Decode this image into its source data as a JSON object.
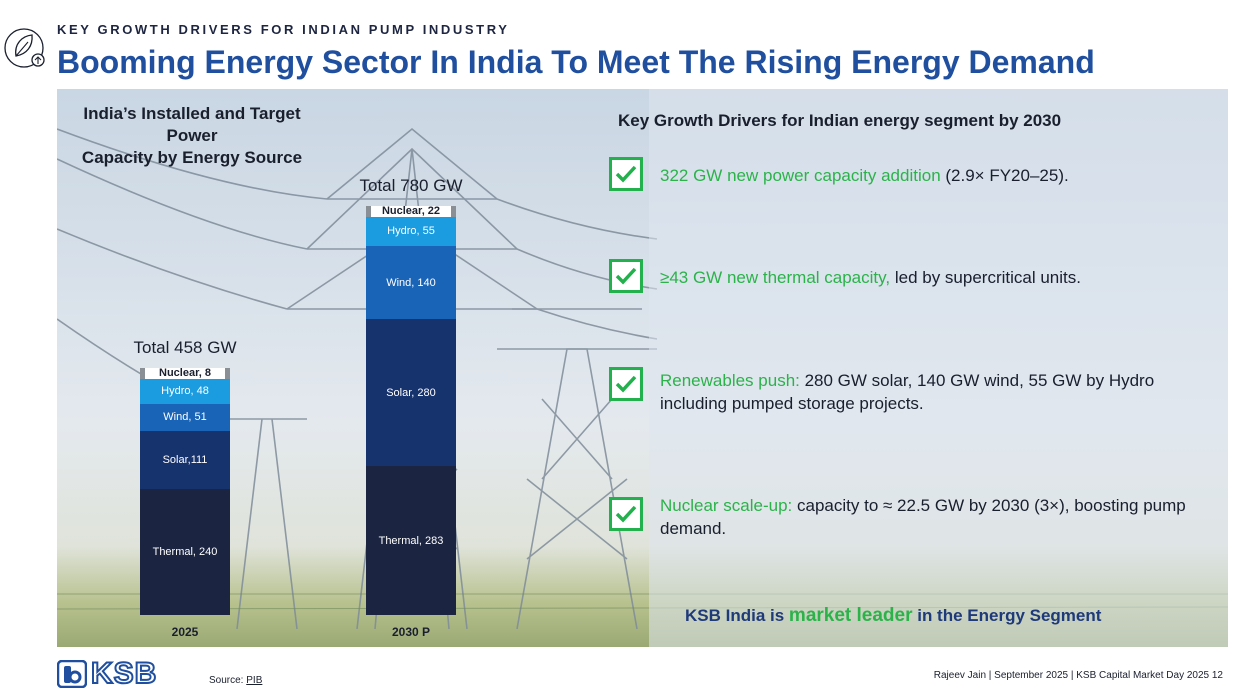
{
  "header": {
    "kicker": "KEY GROWTH DRIVERS FOR INDIAN PUMP INDUSTRY",
    "title": "Booming Energy Sector In India To Meet The Rising Energy Demand"
  },
  "chart_data": {
    "type": "bar",
    "stacked": true,
    "title_line1": "India’s Installed and Target Power",
    "title_line2": "Capacity by Energy Source",
    "categories": [
      "2025",
      "2030 P"
    ],
    "totals": [
      "Total 458 GW",
      "Total 780 GW"
    ],
    "series": [
      {
        "name": "Thermal",
        "values": [
          240,
          283
        ],
        "labels": [
          "Thermal, 240",
          "Thermal, 283"
        ],
        "color": "#1b2541"
      },
      {
        "name": "Solar",
        "values": [
          111,
          280
        ],
        "labels": [
          "Solar,111",
          "Solar, 280"
        ],
        "color": "#17336e"
      },
      {
        "name": "Wind",
        "values": [
          51,
          140
        ],
        "labels": [
          "Wind, 51",
          "Wind, 140"
        ],
        "color": "#1a64b8"
      },
      {
        "name": "Hydro",
        "values": [
          48,
          55
        ],
        "labels": [
          "Hydro, 48",
          "Hydro, 55"
        ],
        "color": "#1b9ce0"
      },
      {
        "name": "Nuclear",
        "values": [
          8,
          22
        ],
        "labels": [
          "Nuclear, 8",
          "Nuclear, 22"
        ],
        "color": "#8a8f96"
      }
    ]
  },
  "drivers": {
    "title": "Key Growth Drivers for Indian energy segment by 2030",
    "items": [
      {
        "highlight": "322 GW new power capacity addition",
        "rest": " (2.9× FY20–25)."
      },
      {
        "highlight": "≥43 GW new thermal capacity,",
        "rest": " led by supercritical units."
      },
      {
        "highlight": "Renewables push:",
        "rest": " 280 GW solar, 140 GW wind, 55 GW by Hydro including pumped storage projects."
      },
      {
        "highlight": "Nuclear scale-up:",
        "rest": " capacity to ≈ 22.5 GW by 2030 (3×), boosting pump demand."
      }
    ],
    "leader_pre": "KSB India is ",
    "leader_highlight": "market leader",
    "leader_post": " in the Energy Segment"
  },
  "footer": {
    "logo_text": "KSB",
    "source_label": "Source: ",
    "source_link": "PIB",
    "right_text": "Rajeev Jain | September 2025 | KSB Capital Market Day 2025  12"
  },
  "colors": {
    "title_blue": "#1f4f9e",
    "accent_green": "#2bb34a",
    "check_green": "#22b14c"
  },
  "icons": {
    "leaf": "leaf-icon",
    "check": "checkmark-icon"
  }
}
